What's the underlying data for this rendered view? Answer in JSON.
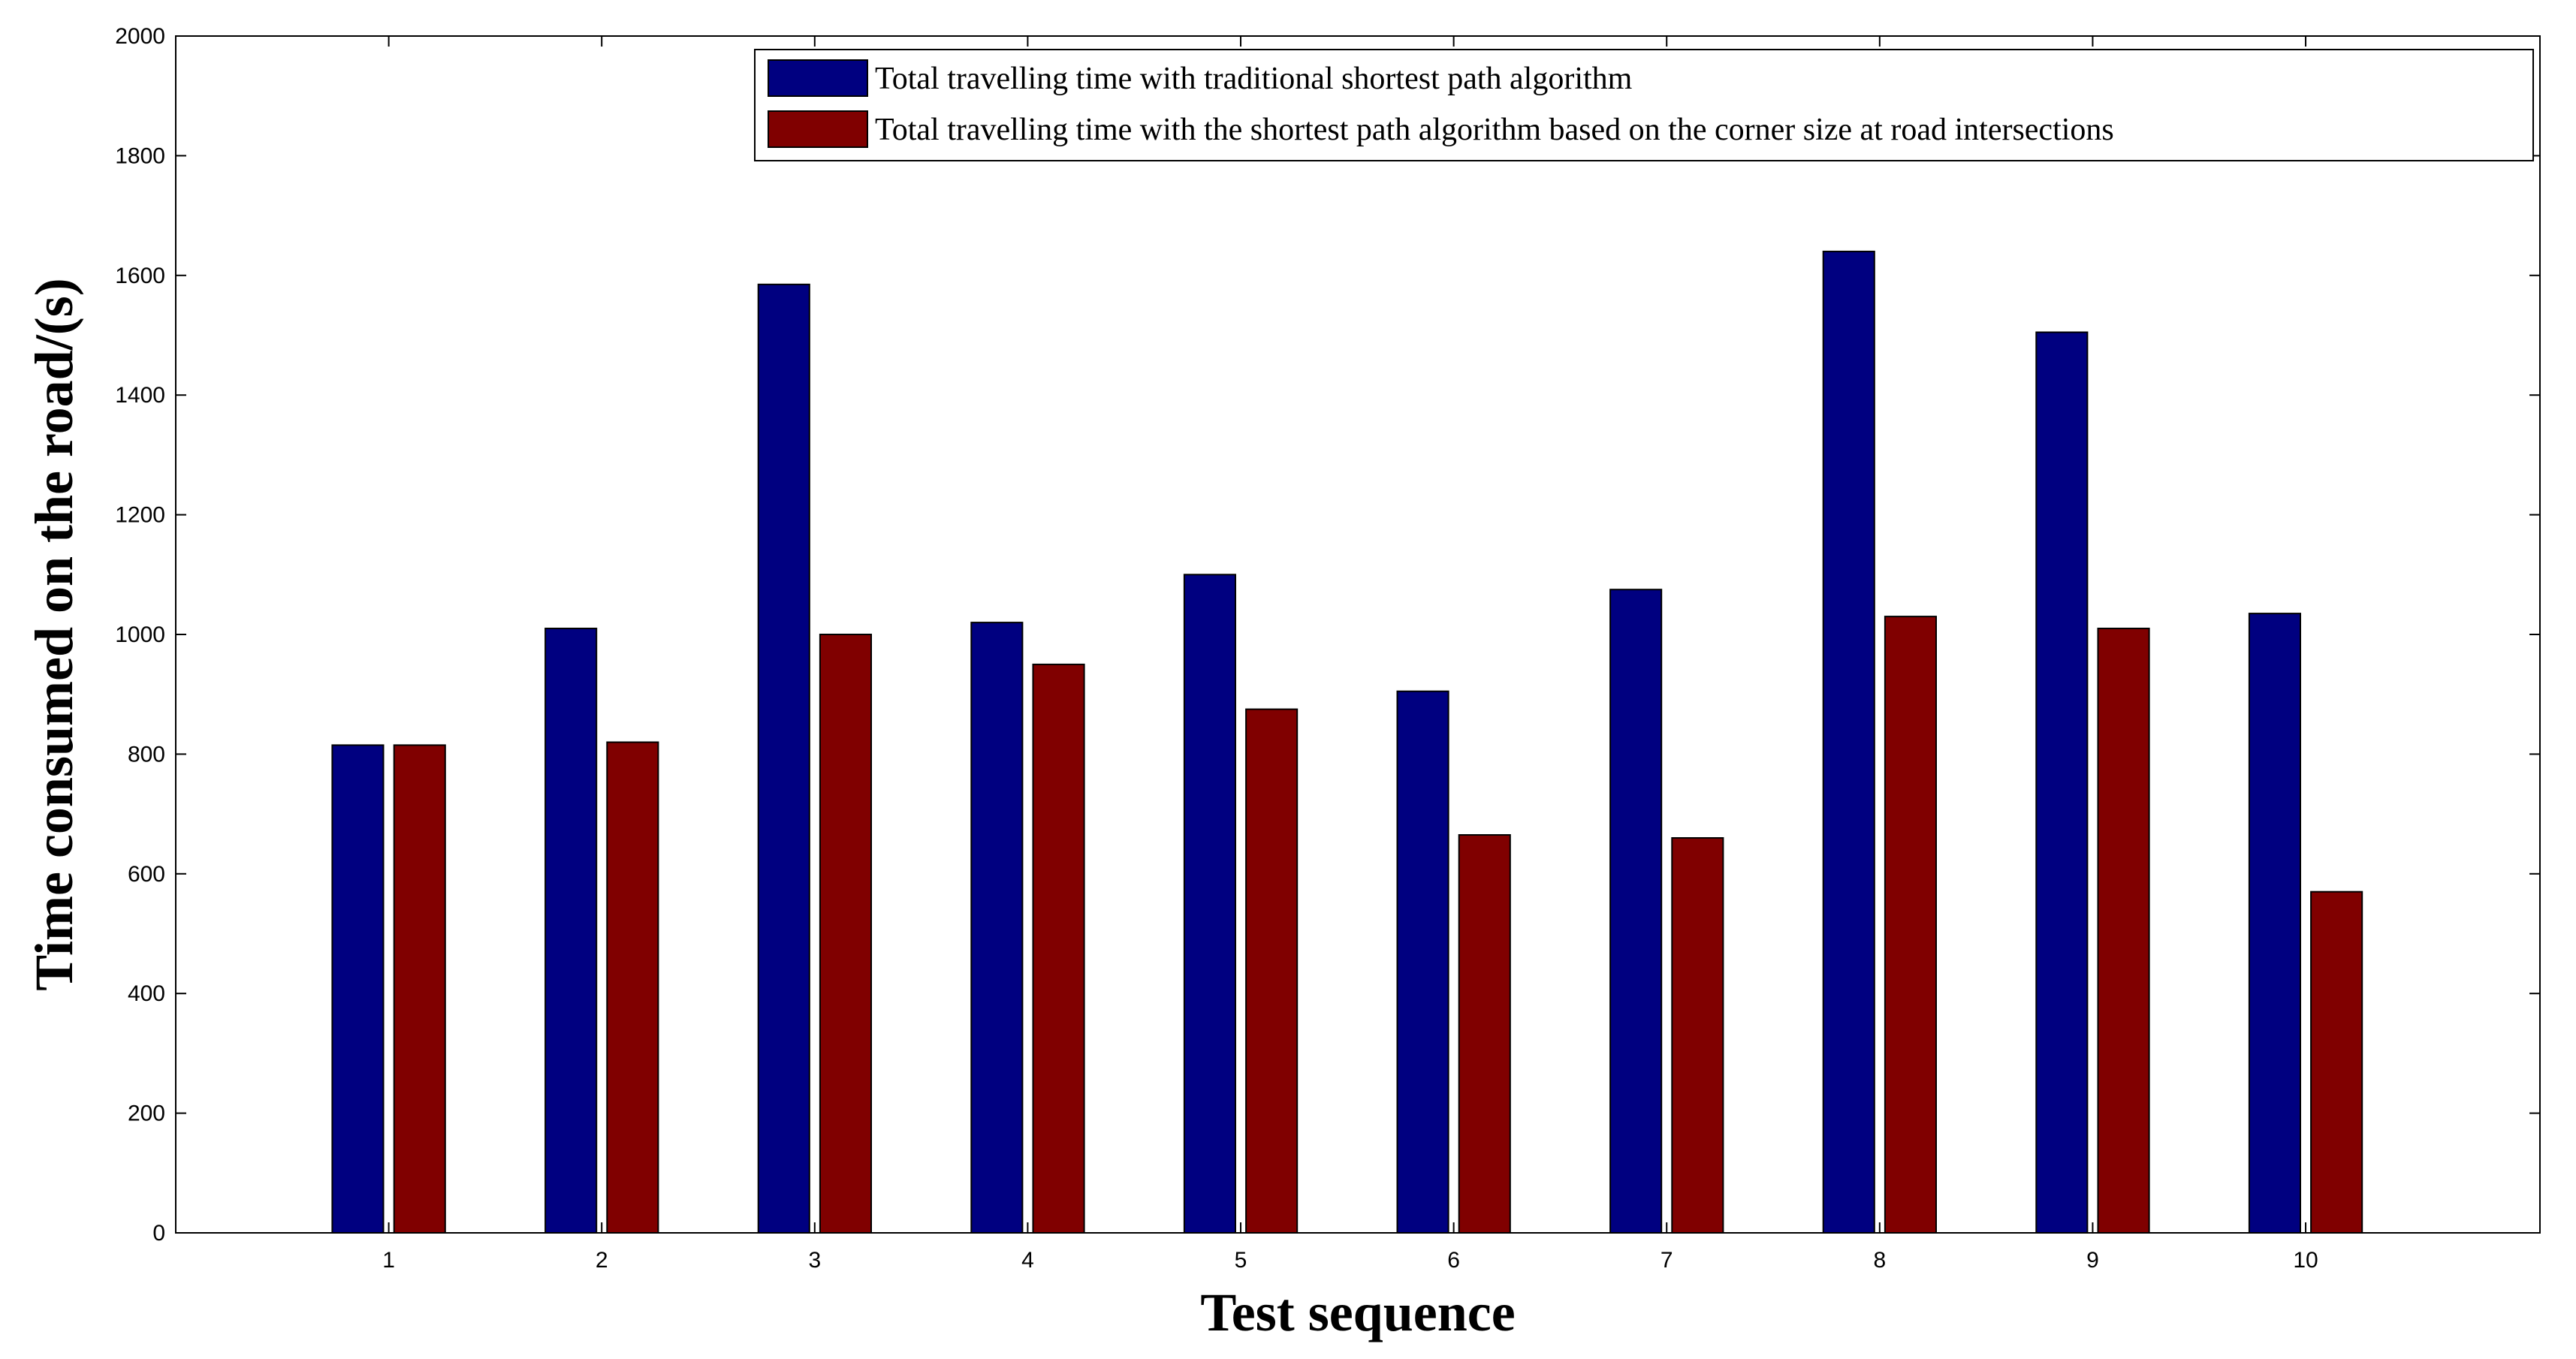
{
  "chart_data": {
    "type": "bar",
    "title": "",
    "xlabel": "Test sequence",
    "ylabel": "Time consumed on the road/(s)",
    "categories": [
      "1",
      "2",
      "3",
      "4",
      "5",
      "6",
      "7",
      "8",
      "9",
      "10"
    ],
    "series": [
      {
        "name": "Total travelling time with traditional shortest path algorithm",
        "color": "#000080",
        "values": [
          815,
          1010,
          1585,
          1020,
          1100,
          905,
          1075,
          1640,
          1505,
          1035
        ]
      },
      {
        "name": "Total travelling time with the shortest path algorithm based on the corner size at road intersections",
        "color": "#800000",
        "values": [
          815,
          820,
          1000,
          950,
          875,
          665,
          660,
          1030,
          1010,
          570
        ]
      }
    ],
    "ylim": [
      0,
      2000
    ],
    "yticks": [
      0,
      200,
      400,
      600,
      800,
      1000,
      1200,
      1400,
      1600,
      1800,
      2000
    ],
    "xlim": [
      0.0,
      11.1
    ],
    "grid": false,
    "legend_position": "top-right"
  }
}
